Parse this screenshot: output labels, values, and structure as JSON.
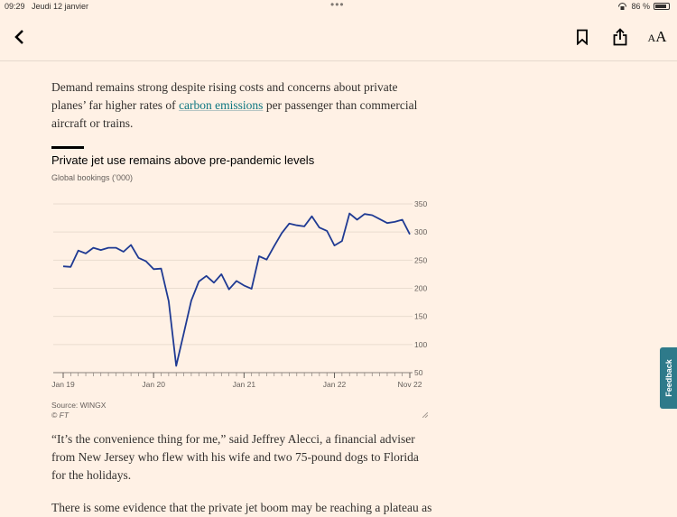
{
  "status_bar": {
    "time": "09:29",
    "date": "Jeudi 12 janvier",
    "battery": "86 %",
    "battery_level": 0.86
  },
  "toolbar": {
    "back_icon": "chevron-left-icon",
    "bookmark_icon": "bookmark-icon",
    "share_icon": "share-icon",
    "text_size_label": "AA"
  },
  "article": {
    "para1_before": "Demand remains strong despite rising costs and concerns about private planes’ far higher rates of ",
    "para1_link": "carbon emissions",
    "para1_after": " per passenger than commercial aircraft or trains.",
    "para2": "“It’s the convenience thing for me,” said Jeffrey Alecci, a financial adviser from New Jersey who flew with his wife and two 75-pound dogs to Florida for the holidays.",
    "para3": "There is some evidence that the private jet boom may be reaching a plateau as"
  },
  "chart_data": {
    "type": "line",
    "title": "Private jet use remains above pre-pandemic levels",
    "subtitle": "Global bookings (’000)",
    "source": "Source: WINGX",
    "copyright": "© FT",
    "ylim": [
      50,
      350
    ],
    "yticks": [
      50,
      100,
      150,
      200,
      250,
      300,
      350
    ],
    "xticks": [
      "Jan 19",
      "Jan 20",
      "Jan 21",
      "Jan 22",
      "Nov 22"
    ],
    "xtick_index": [
      0,
      13,
      26,
      39,
      50
    ],
    "series": [
      {
        "name": "Global bookings",
        "color": "#1f3a93",
        "values": [
          239,
          238,
          267,
          262,
          272,
          268,
          272,
          272,
          265,
          277,
          254,
          248,
          234,
          235,
          177,
          62,
          120,
          178,
          212,
          222,
          210,
          225,
          198,
          213,
          205,
          199,
          257,
          251,
          275,
          298,
          315,
          312,
          310,
          328,
          308,
          302,
          276,
          284,
          333,
          322,
          332,
          330,
          323,
          316,
          318,
          322,
          296
        ]
      }
    ]
  },
  "feedback": {
    "label": "Feedback"
  }
}
